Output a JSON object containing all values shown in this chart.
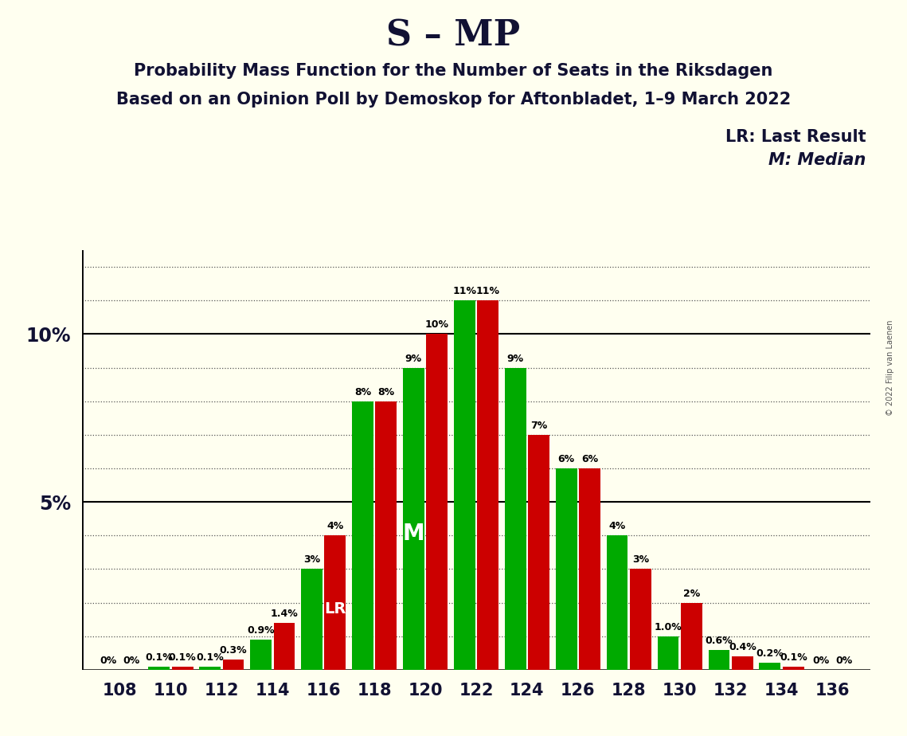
{
  "title": "S – MP",
  "subtitle1": "Probability Mass Function for the Number of Seats in the Riksdagen",
  "subtitle2": "Based on an Opinion Poll by Demoskop for Aftonbladet, 1–9 March 2022",
  "copyright": "© 2022 Filip van Laenen",
  "legend_lr": "LR: Last Result",
  "legend_m": "M: Median",
  "seats": [
    108,
    110,
    112,
    114,
    116,
    118,
    120,
    122,
    124,
    126,
    128,
    130,
    132,
    134,
    136
  ],
  "green_values": [
    0.0,
    0.1,
    0.1,
    0.9,
    3.0,
    8.0,
    9.0,
    11.0,
    9.0,
    6.0,
    4.0,
    1.0,
    0.6,
    0.2,
    0.0
  ],
  "red_values": [
    0.0,
    0.1,
    0.3,
    1.4,
    4.0,
    8.0,
    10.0,
    11.0,
    7.0,
    6.0,
    3.0,
    2.0,
    0.4,
    0.1,
    0.0
  ],
  "green_labels": [
    "0%",
    "0.1%",
    "0.1%",
    "0.9%",
    "3%",
    "8%",
    "9%",
    "11%",
    "9%",
    "6%",
    "4%",
    "1.0%",
    "0.6%",
    "0.2%",
    "0%"
  ],
  "red_labels": [
    "0%",
    "0.1%",
    "0.3%",
    "1.4%",
    "4%",
    "8%",
    "10%",
    "11%",
    "7%",
    "6%",
    "3%",
    "2%",
    "0.4%",
    "0.1%",
    "0%"
  ],
  "green_color": "#00aa00",
  "red_color": "#cc0000",
  "background_color": "#fffff0",
  "lr_seat": 116,
  "median_seat": 120,
  "ylim": [
    0,
    12.5
  ],
  "bar_width": 0.42,
  "bar_gap": 0.04,
  "label_fontsize": 9,
  "tick_fontsize": 15,
  "ytick_fontsize": 17,
  "title_fontsize": 32,
  "subtitle_fontsize": 15,
  "legend_fontsize": 15
}
